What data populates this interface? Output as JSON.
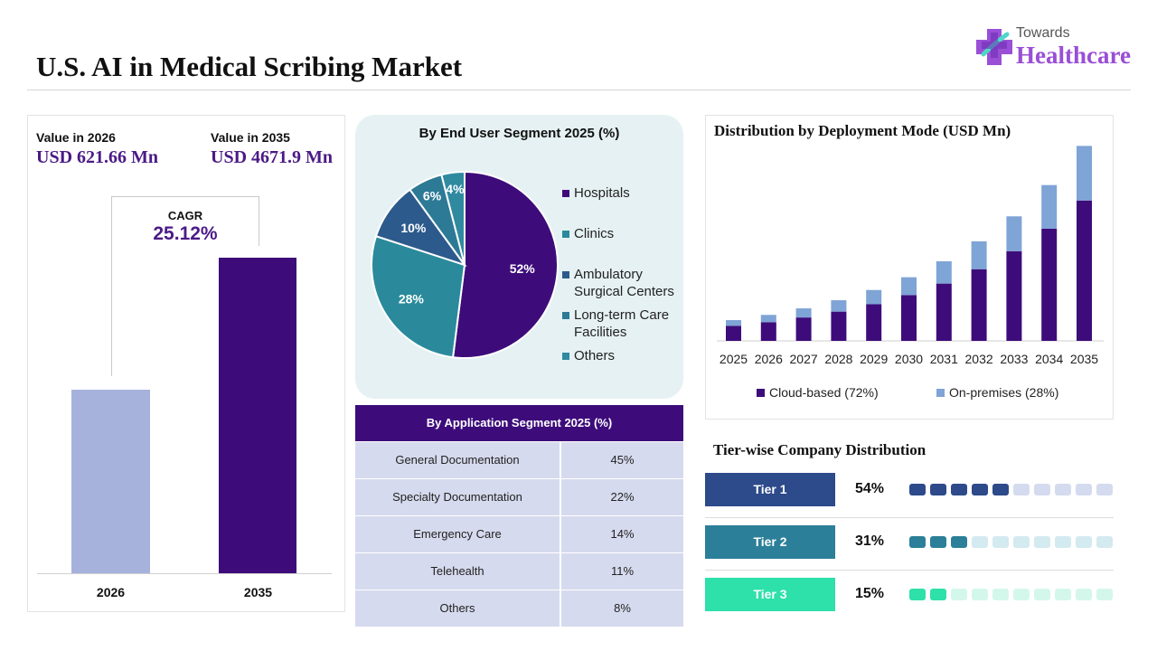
{
  "header": {
    "title": "U.S. AI in Medical Scribing Market",
    "logo_small": "Towards",
    "logo_big": "Healthcare"
  },
  "market_value": {
    "label_2026": "Value in 2026",
    "value_2026": "USD 621.66 Mn",
    "label_2035": "Value in 2035",
    "value_2035": "USD 4671.9 Mn",
    "cagr_label": "CAGR",
    "cagr_value": "25.12%",
    "x_2026": "2026",
    "x_2035": "2035"
  },
  "colors": {
    "dark_purple": "#3d0c7a",
    "light_blue": "#a6b2dc",
    "on_premises": "#7fa4d6",
    "tier1": "#2d4a8a",
    "tier2": "#2c7f98",
    "tier3": "#2ee0aa"
  },
  "end_user": {
    "title": "By End User Segment 2025 (%)",
    "legend": [
      {
        "label": "Hospitals",
        "color": "#3d0c7a"
      },
      {
        "label": "Clinics",
        "color": "#2a8a9c"
      },
      {
        "label": "Ambulatory Surgical Centers",
        "color": "#2d5a8c"
      },
      {
        "label": "Long-term Care Facilities",
        "color": "#2c7a96"
      },
      {
        "label": "Others",
        "color": "#2f8aa0"
      }
    ]
  },
  "application": {
    "title": "By Application Segment 2025 (%)",
    "rows": [
      {
        "name": "General Documentation",
        "value": "45%"
      },
      {
        "name": "Specialty Documentation",
        "value": "22%"
      },
      {
        "name": "Emergency Care",
        "value": "14%"
      },
      {
        "name": "Telehealth",
        "value": "11%"
      },
      {
        "name": "Others",
        "value": "8%"
      }
    ]
  },
  "deployment": {
    "title": "Distribution by Deployment Mode (USD Mn)",
    "legend_cloud": "Cloud-based (72%)",
    "legend_onprem": "On-premises (28%)"
  },
  "tiers": {
    "title": "Tier-wise Company Distribution",
    "items": [
      {
        "label": "Tier 1",
        "pct": "54%",
        "filled": 5,
        "color": "#2d4a8a",
        "empty_color": "#d5dbef"
      },
      {
        "label": "Tier 2",
        "pct": "31%",
        "filled": 3,
        "color": "#2c7f98",
        "empty_color": "#d3eaf0"
      },
      {
        "label": "Tier 3",
        "pct": "15%",
        "filled": 2,
        "color": "#2ee0aa",
        "empty_color": "#d4f7ec"
      }
    ]
  },
  "chart_data": [
    {
      "type": "bar",
      "categories": [
        "2026",
        "2035"
      ],
      "values": [
        621.66,
        4671.9
      ]
    },
    {
      "type": "pie",
      "title": "By End User Segment 2025 (%)",
      "categories": [
        "Hospitals",
        "Clinics",
        "Ambulatory Surgical Centers",
        "Long-term Care Facilities",
        "Others"
      ],
      "values": [
        52,
        28,
        10,
        6,
        4
      ],
      "data_labels": [
        "52%",
        "28%",
        "10%",
        "6%",
        "4%"
      ]
    },
    {
      "type": "table",
      "title": "By Application Segment 2025 (%)",
      "categories": [
        "General Documentation",
        "Specialty Documentation",
        "Emergency Care",
        "Telehealth",
        "Others"
      ],
      "values": [
        45,
        22,
        14,
        11,
        8
      ]
    },
    {
      "type": "bar",
      "title": "Distribution by Deployment Mode (USD Mn)",
      "categories": [
        "2025",
        "2026",
        "2027",
        "2028",
        "2029",
        "2030",
        "2031",
        "2032",
        "2033",
        "2034",
        "2035"
      ],
      "series": [
        {
          "name": "Cloud-based (72%)",
          "values": [
            360,
            450,
            563,
            704,
            881,
            1102,
            1379,
            1725,
            2158,
            2700,
            3378
          ]
        },
        {
          "name": "On-premises (28%)",
          "values": [
            140,
            175,
            219,
            274,
            343,
            429,
            536,
            671,
            839,
            1050,
            1314
          ]
        }
      ],
      "stacked": true,
      "grid": false,
      "legend": "bottom"
    },
    {
      "type": "bar",
      "title": "Tier-wise Company Distribution",
      "categories": [
        "Tier 1",
        "Tier 2",
        "Tier 3"
      ],
      "values": [
        54,
        31,
        15
      ]
    }
  ]
}
